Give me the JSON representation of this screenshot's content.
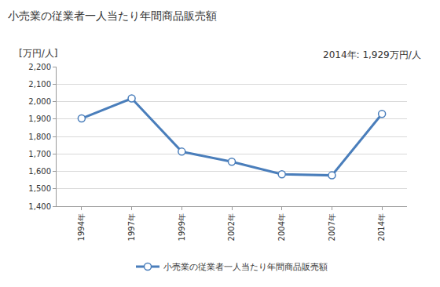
{
  "chart_data": {
    "type": "line",
    "title": "小売業の従業者一人当たり年間商品販売額",
    "y_label": "[万円/人]",
    "annotations": [
      "2014年: 1,929万円/人"
    ],
    "categories": [
      "1994年",
      "1997年",
      "1999年",
      "2002年",
      "2004年",
      "2007年",
      "2014年"
    ],
    "series": [
      {
        "name": "小売業の従業者一人当たり年間商品販売額",
        "color": "#4a7ebb",
        "marker": "circle-open",
        "values": [
          1903,
          2018,
          1713,
          1655,
          1583,
          1577,
          1929
        ]
      }
    ],
    "ylim": [
      1400,
      2200
    ],
    "yticks": [
      {
        "value": 1400,
        "label": "1,400"
      },
      {
        "value": 1500,
        "label": "1,500"
      },
      {
        "value": 1600,
        "label": "1,600"
      },
      {
        "value": 1700,
        "label": "1,700"
      },
      {
        "value": 1800,
        "label": "1,800"
      },
      {
        "value": 1900,
        "label": "1,900"
      },
      {
        "value": 2000,
        "label": "2,000"
      },
      {
        "value": 2100,
        "label": "2,100"
      },
      {
        "value": 2200,
        "label": "2,200"
      }
    ],
    "grid": true,
    "legend": "bottom"
  }
}
